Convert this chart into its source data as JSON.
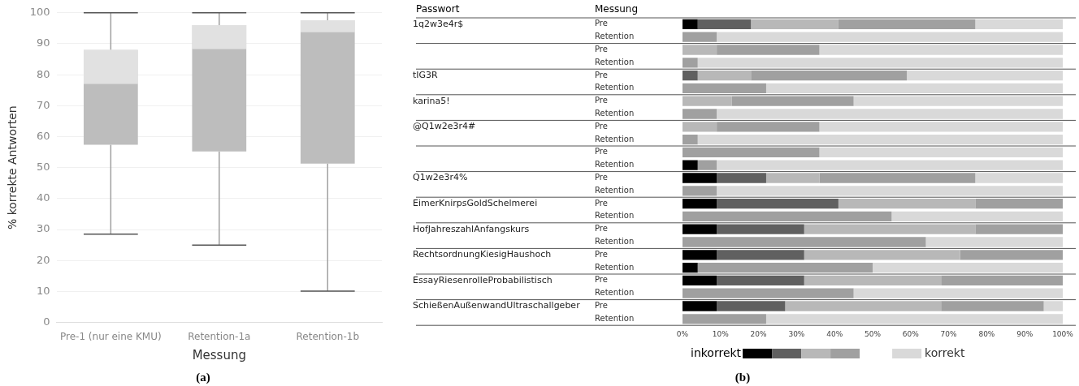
{
  "chart_data": [
    {
      "type": "box",
      "categories": [
        "Pre-1 (nur eine KMU)",
        "Retention-1a",
        "Retention-1b"
      ],
      "xlabel": "Messung",
      "ylabel": "% korrekte Antworten",
      "ylim": [
        0,
        100
      ],
      "yticks": [
        0,
        10,
        20,
        30,
        40,
        50,
        60,
        70,
        80,
        90,
        100
      ],
      "grid": "y",
      "legend": false,
      "series": [
        {
          "color": "#bdbdbd",
          "boxes": [
            {
              "low": 28.5,
              "q1": 57.4,
              "median": 77,
              "q3": 88,
              "high": 100
            },
            {
              "low": 25,
              "q1": 55.2,
              "median": 88.3,
              "q3": 96,
              "high": 100
            },
            {
              "low": 10.1,
              "q1": 51.3,
              "median": 93.7,
              "q3": 97.6,
              "high": 100
            }
          ]
        }
      ],
      "annotations": [
        "(a)"
      ]
    },
    {
      "type": "bar",
      "orientation": "horizontal",
      "stacked": true,
      "ylabel": "Messung",
      "y2label": "Passwort",
      "legend": "bottom",
      "categories": [
        "Pre",
        "Retention",
        "Pre",
        "Retention",
        "Pre",
        "Retention",
        "Pre",
        "Retention",
        "Pre",
        "Retention",
        "Pre",
        "Retention",
        "Pre",
        "Retention",
        "Pre",
        "Retention",
        "Pre",
        "Retention",
        "Pre",
        "Retention",
        "Pre",
        "Retention",
        "Pre",
        "Retention"
      ],
      "y2_categories": [
        "1q2w3e4r$",
        null,
        null,
        null,
        "tIG3R",
        null,
        "karina5!",
        null,
        "@Q1w2e3r4#",
        null,
        null,
        null,
        "Q1w2e3r4%",
        null,
        "EimerKnirpsGoldSchelmerei",
        null,
        "HofJahreszahlAnfangskurs",
        null,
        "RechtsordnungKiesigHaushoch",
        null,
        "EssayRiesenrolleProbabilistisch",
        null,
        "SchießenAußenwandUltraschallgeber",
        null
      ],
      "xlim": [
        0,
        100
      ],
      "xticks": [
        {
          "value": 0,
          "label": "0%"
        },
        {
          "value": 10,
          "label": "10%"
        },
        {
          "value": 20,
          "label": "20%"
        },
        {
          "value": 30,
          "label": "30%"
        },
        {
          "value": 40,
          "label": "40%"
        },
        {
          "value": 50,
          "label": "50%"
        },
        {
          "value": 60,
          "label": "60%"
        },
        {
          "value": 70,
          "label": "70%"
        },
        {
          "value": 80,
          "label": "80%"
        },
        {
          "value": 90,
          "label": "90%"
        },
        {
          "value": 100,
          "label": "100%"
        }
      ],
      "series": [
        {
          "name": "inkorrekt",
          "color": "#000000",
          "values": [
            4,
            0,
            0,
            0,
            0,
            0,
            0,
            0,
            0,
            0,
            0,
            4,
            9,
            0,
            9,
            0,
            9,
            0,
            9,
            4,
            9,
            0,
            9,
            0
          ]
        },
        {
          "color": "#606060",
          "values": [
            14,
            0,
            0,
            0,
            4,
            0,
            0,
            0,
            0,
            0,
            0,
            0,
            13,
            0,
            32,
            0,
            23,
            0,
            23,
            0,
            23,
            0,
            18,
            0
          ]
        },
        {
          "color": "#b8b8b8",
          "values": [
            23,
            0,
            9,
            0,
            14,
            0,
            13,
            0,
            9,
            0,
            0,
            0,
            14,
            0,
            36,
            0,
            45,
            0,
            41,
            0,
            36,
            0,
            41,
            0
          ]
        },
        {
          "color": "#a0a0a0",
          "values": [
            36,
            9,
            27,
            4,
            41,
            22,
            32,
            9,
            27,
            4,
            36,
            5,
            41,
            9,
            23,
            55,
            23,
            64,
            27,
            46,
            32,
            45,
            27,
            22
          ]
        },
        {
          "name": "korrekt",
          "color": "#d9d9d9",
          "values": [
            23,
            91,
            64,
            96,
            41,
            78,
            55,
            91,
            64,
            96,
            64,
            91,
            23,
            91,
            0,
            45,
            0,
            36,
            0,
            50,
            0,
            55,
            5,
            78
          ]
        }
      ],
      "annotations": [
        "(b)"
      ]
    }
  ]
}
